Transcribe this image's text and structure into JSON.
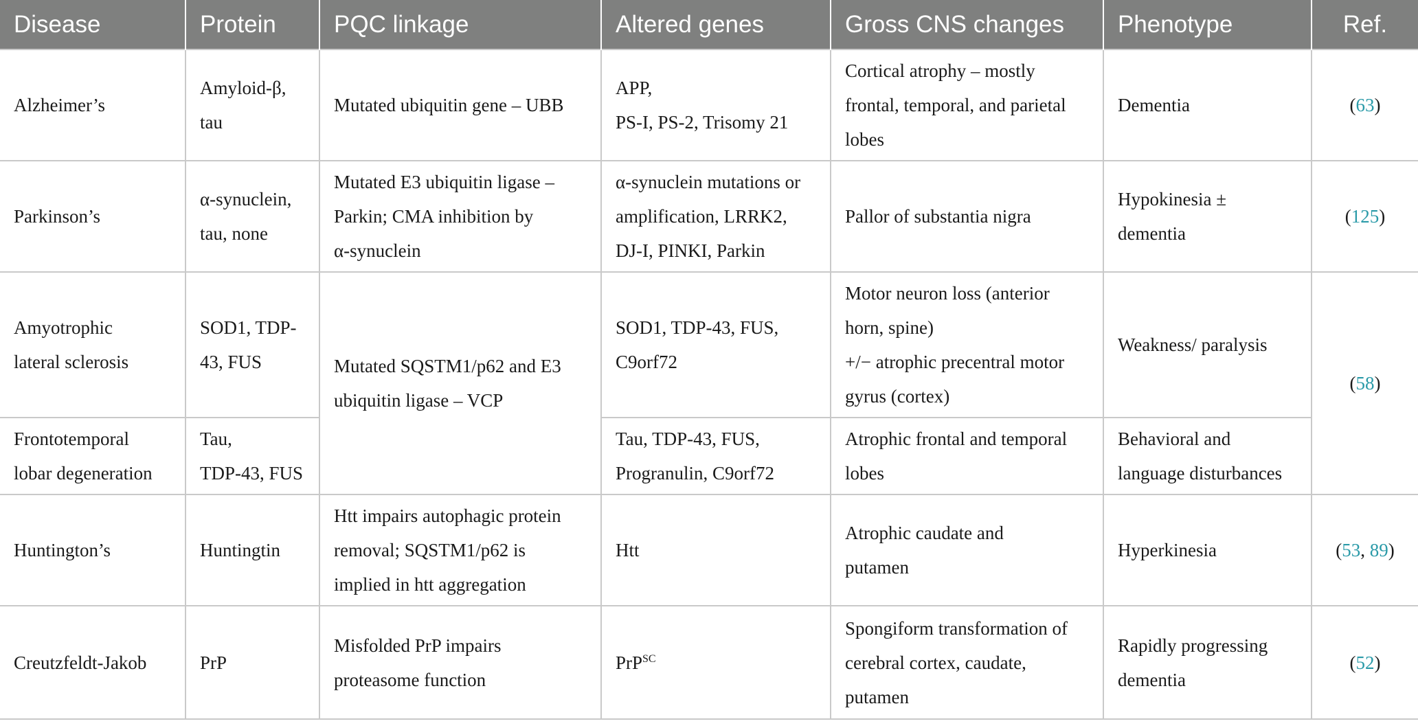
{
  "headers": [
    "Disease",
    "Protein",
    "PQC linkage",
    "Altered genes",
    "Gross CNS changes",
    "Phenotype",
    "Ref."
  ],
  "rows": [
    {
      "disease": [
        "Alzheimer’s"
      ],
      "protein": [
        "Amyloid-β,",
        "tau"
      ],
      "pqc": [
        "Mutated ubiquitin gene – UBB"
      ],
      "genes": [
        "APP,",
        "PS-I, PS-2, Trisomy 21"
      ],
      "cns": [
        "Cortical atrophy – mostly",
        "frontal, temporal, and parietal",
        "lobes"
      ],
      "phenotype": [
        "Dementia"
      ],
      "ref": {
        "open": "(",
        "links": [
          "63"
        ],
        "sep": ", ",
        "close": ")"
      }
    },
    {
      "disease": [
        "Parkinson’s"
      ],
      "protein": [
        "α-synuclein,",
        "tau, none"
      ],
      "pqc": [
        "Mutated E3 ubiquitin ligase –",
        "Parkin; CMA inhibition by",
        "α-synuclein"
      ],
      "genes": [
        "α-synuclein mutations or",
        "amplification, LRRK2,",
        "DJ-I, PINKI, Parkin"
      ],
      "cns": [
        "Pallor of substantia nigra"
      ],
      "phenotype": [
        "Hypokinesia ±",
        "dementia"
      ],
      "ref": {
        "open": "(",
        "links": [
          "125"
        ],
        "sep": ", ",
        "close": ")"
      }
    },
    {
      "disease": [
        "Amyotrophic",
        "lateral sclerosis"
      ],
      "protein": [
        "SOD1, TDP-",
        "43, FUS"
      ],
      "pqc": [
        "Mutated SQSTM1/p62 and E3",
        "ubiquitin ligase – VCP"
      ],
      "genes": [
        "SOD1, TDP-43, FUS,",
        "C9orf72"
      ],
      "cns": [
        "Motor neuron loss (anterior",
        "horn, spine)",
        "+/− atrophic precentral motor",
        "gyrus (cortex)"
      ],
      "phenotype": [
        "Weakness/ paralysis"
      ],
      "ref": {
        "open": "(",
        "links": [
          "58"
        ],
        "sep": ", ",
        "close": ")"
      }
    },
    {
      "disease": [
        "Frontotemporal",
        "lobar degeneration"
      ],
      "protein": [
        "Tau,",
        "TDP-43, FUS"
      ],
      "genes": [
        "Tau, TDP-43, FUS,",
        "Progranulin, C9orf72"
      ],
      "cns": [
        "Atrophic frontal and temporal",
        "lobes"
      ],
      "phenotype": [
        "Behavioral and",
        "language disturbances"
      ]
    },
    {
      "disease": [
        "Huntington’s"
      ],
      "protein": [
        "Huntingtin"
      ],
      "pqc": [
        "Htt impairs autophagic protein",
        "removal; SQSTM1/p62 is",
        "implied in htt aggregation"
      ],
      "genes": [
        "Htt"
      ],
      "cns": [
        "Atrophic caudate and",
        "putamen"
      ],
      "phenotype": [
        "Hyperkinesia"
      ],
      "ref": {
        "open": "(",
        "links": [
          "53",
          "89"
        ],
        "sep": ", ",
        "close": ")"
      }
    },
    {
      "disease": [
        "Creutzfeldt-Jakob"
      ],
      "protein": [
        "PrP"
      ],
      "pqc": [
        "Misfolded PrP impairs",
        "proteasome function"
      ],
      "genes_base": "PrP",
      "genes_sup": "SC",
      "cns": [
        "Spongiform transformation of",
        "cerebral cortex, caudate,",
        "putamen"
      ],
      "phenotype": [
        "Rapidly progressing",
        "dementia"
      ],
      "ref": {
        "open": "(",
        "links": [
          "52"
        ],
        "sep": ", ",
        "close": ")"
      }
    }
  ],
  "colors": {
    "header_bg": "#7f807f",
    "header_text": "#ffffff",
    "grid": "#c9c9c9",
    "link": "#2a9aa8"
  }
}
